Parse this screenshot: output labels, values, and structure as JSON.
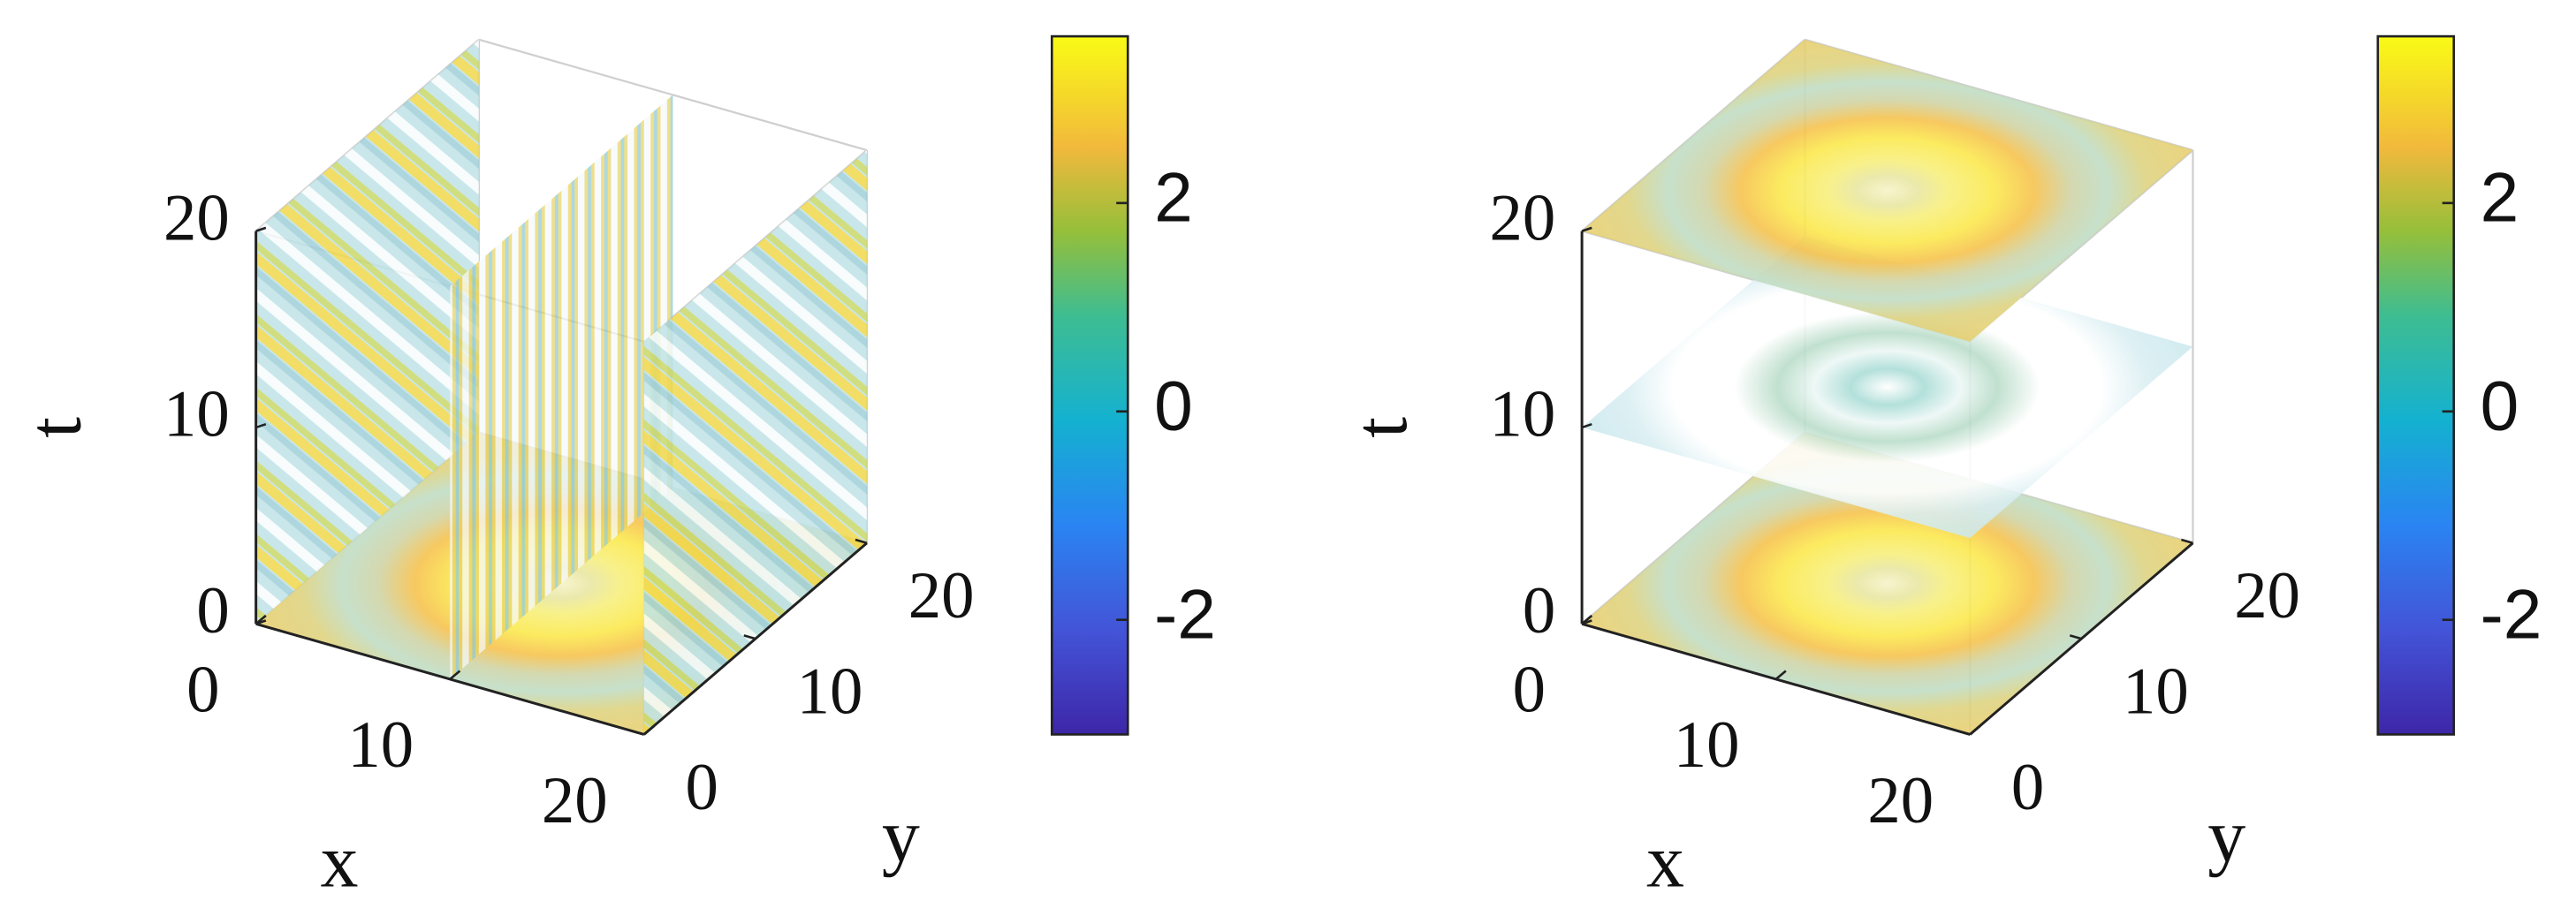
{
  "chart_data": [
    {
      "type": "slice3d",
      "xlabel": "x",
      "ylabel": "y",
      "zlabel": "t",
      "xlim": [
        0,
        20
      ],
      "ylim": [
        0,
        20
      ],
      "zlim": [
        0,
        20
      ],
      "xticks": [
        0,
        10,
        20
      ],
      "yticks": [
        0,
        10,
        20
      ],
      "zticks": [
        0,
        10,
        20
      ],
      "xslices": [
        0,
        10,
        20
      ],
      "zslices": [
        0
      ],
      "clim": [
        -3.1,
        3.6
      ],
      "cticks": [
        -2,
        0,
        2
      ],
      "colormap": "parula"
    },
    {
      "type": "slice3d",
      "xlabel": "x",
      "ylabel": "y",
      "zlabel": "t",
      "xlim": [
        0,
        20
      ],
      "ylim": [
        0,
        20
      ],
      "zlim": [
        0,
        20
      ],
      "xticks": [
        0,
        10,
        20
      ],
      "yticks": [
        0,
        10,
        20
      ],
      "zticks": [
        0,
        10,
        20
      ],
      "zslices": [
        0,
        10,
        20
      ],
      "clim": [
        -3.1,
        3.6
      ],
      "cticks": [
        -2,
        0,
        2
      ],
      "colormap": "parula"
    }
  ]
}
